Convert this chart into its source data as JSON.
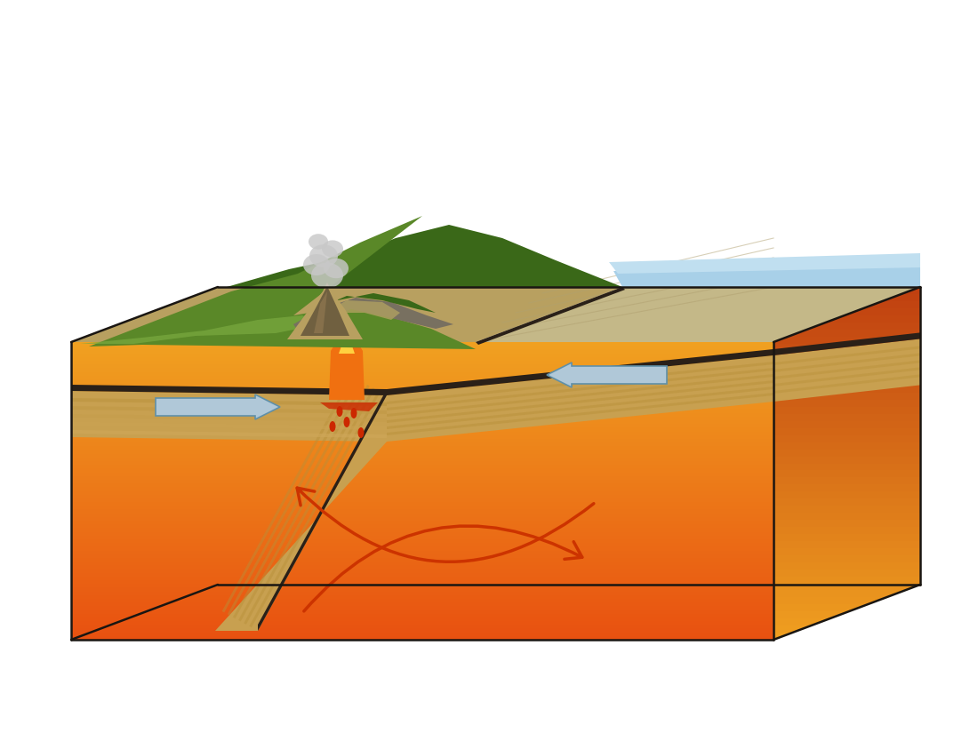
{
  "bg": "#ffffff",
  "mantle_hot": "#e85010",
  "mantle_warm": "#f0a020",
  "mantle_right_dark": "#c04010",
  "crust_tan": "#c8a050",
  "crust_stripe1": "#b89038",
  "crust_stripe2": "#d4ac60",
  "crust_dark_cap": "#2a2018",
  "ocean_floor": "#c4b888",
  "ocean_water": "#a8d0e8",
  "ocean_water2": "#c0dff0",
  "land_green_dark": "#3a6818",
  "land_green_mid": "#5a8828",
  "land_green_light": "#7aaa40",
  "land_tan": "#b8a060",
  "rock_gray": "#787060",
  "volcano_brown": "#706040",
  "smoke_gray": "#c8c8c8",
  "magma_orange": "#f07010",
  "magma_yellow": "#ffd040",
  "lava_red": "#cc2800",
  "arrow_plate": "#b0c8d8",
  "arrow_plate_edge": "#6090a8",
  "arrow_mantle": "#cc3300",
  "edge_dark": "#1a1612"
}
